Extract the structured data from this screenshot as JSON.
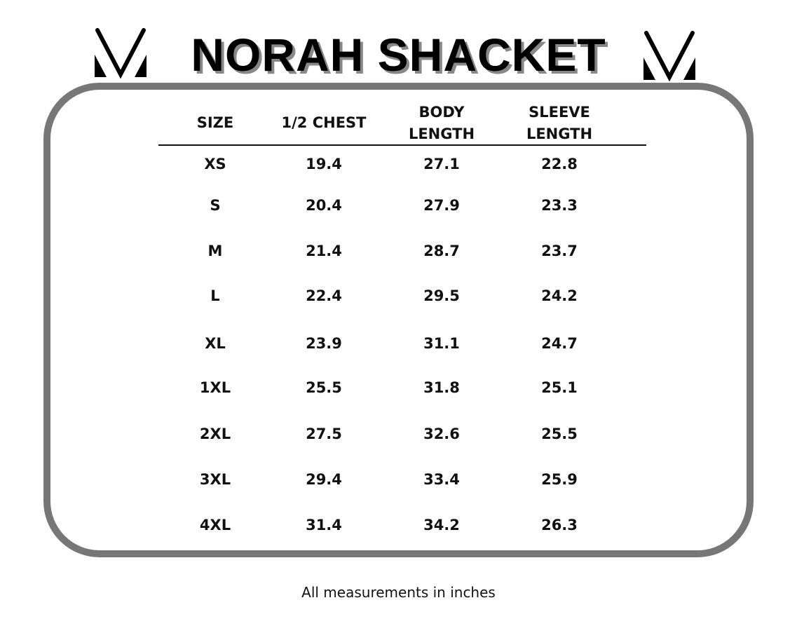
{
  "title": "NORAH SHACKET",
  "logo_icon": "mv-chevron-logo",
  "table": {
    "headers": [
      "SIZE",
      "1/2 CHEST",
      "BODY\nLENGTH",
      "SLEEVE\nLENGTH"
    ],
    "rows": [
      [
        "XS",
        "19.4",
        "27.1",
        "22.8"
      ],
      [
        "S",
        "20.4",
        "27.9",
        "23.3"
      ],
      [
        "M",
        "21.4",
        "28.7",
        "23.7"
      ],
      [
        "L",
        "22.4",
        "29.5",
        "24.2"
      ],
      [
        "XL",
        "23.9",
        "31.1",
        "24.7"
      ],
      [
        "1XL",
        "25.5",
        "31.8",
        "25.1"
      ],
      [
        "2XL",
        "27.5",
        "32.6",
        "25.5"
      ],
      [
        "3XL",
        "29.4",
        "33.4",
        "25.9"
      ],
      [
        "4XL",
        "31.4",
        "34.2",
        "26.3"
      ]
    ]
  },
  "footer": "All measurements in inches",
  "colors": {
    "frame": "#777777",
    "text": "#111111"
  }
}
